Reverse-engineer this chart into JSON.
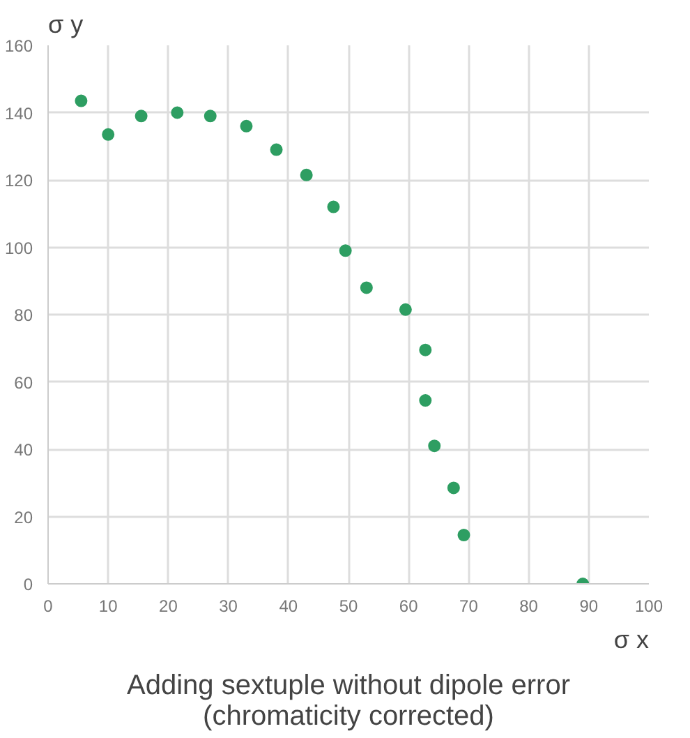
{
  "chart_data": {
    "type": "scatter",
    "title": "Adding sextuple without dipole error\n(chromaticity corrected)",
    "xlabel": "σ x",
    "ylabel": "σ y",
    "x": [
      5.5,
      10,
      15.5,
      21.5,
      27,
      33,
      38,
      43,
      47.5,
      49.5,
      53,
      59.5,
      62.8,
      62.8,
      64.3,
      67.5,
      69.2,
      89
    ],
    "series": [
      {
        "color": "#2e9e62",
        "values": [
          143.5,
          133.5,
          139,
          140,
          139,
          136,
          129,
          121.5,
          112,
          99,
          88,
          81.5,
          69.5,
          54.5,
          41,
          28.5,
          14.5,
          0
        ]
      }
    ],
    "xlim": [
      0,
      100
    ],
    "ylim": [
      0,
      160
    ],
    "xticks": [
      0,
      10,
      20,
      30,
      40,
      50,
      60,
      70,
      80,
      90,
      100
    ],
    "yticks": [
      0,
      20,
      40,
      60,
      80,
      100,
      120,
      140,
      160
    ],
    "grid": true,
    "marker": "circle"
  }
}
